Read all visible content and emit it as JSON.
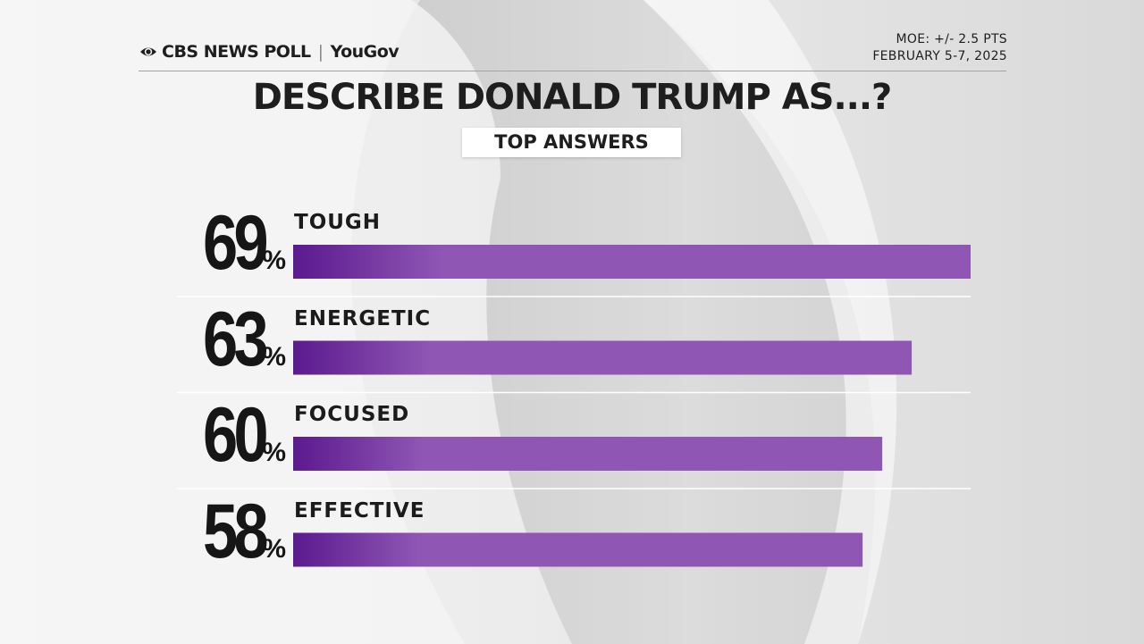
{
  "header": {
    "brand": "CBS NEWS POLL",
    "separator": "|",
    "partner": "YouGov",
    "moe": "MOE: +/- 2.5 PTS",
    "dates": "FEBRUARY 5-7, 2025"
  },
  "title": "DESCRIBE DONALD TRUMP AS...?",
  "subtitle": "TOP ANSWERS",
  "colors": {
    "bar_start": "#5b1a8e",
    "bar_end": "#8f56b4",
    "text": "#1e1e1e",
    "background": "#ececec"
  },
  "icons": {
    "brand_logo": "cbs-eye-icon"
  },
  "chart_data": {
    "type": "bar",
    "orientation": "horizontal",
    "categories": [
      "TOUGH",
      "ENERGETIC",
      "FOCUSED",
      "EFFECTIVE"
    ],
    "values": [
      69,
      63,
      60,
      58
    ],
    "value_labels": [
      "69",
      "63",
      "60",
      "58"
    ],
    "unit": "%",
    "xlim": [
      0,
      69
    ],
    "grid": false,
    "legend": "none"
  }
}
